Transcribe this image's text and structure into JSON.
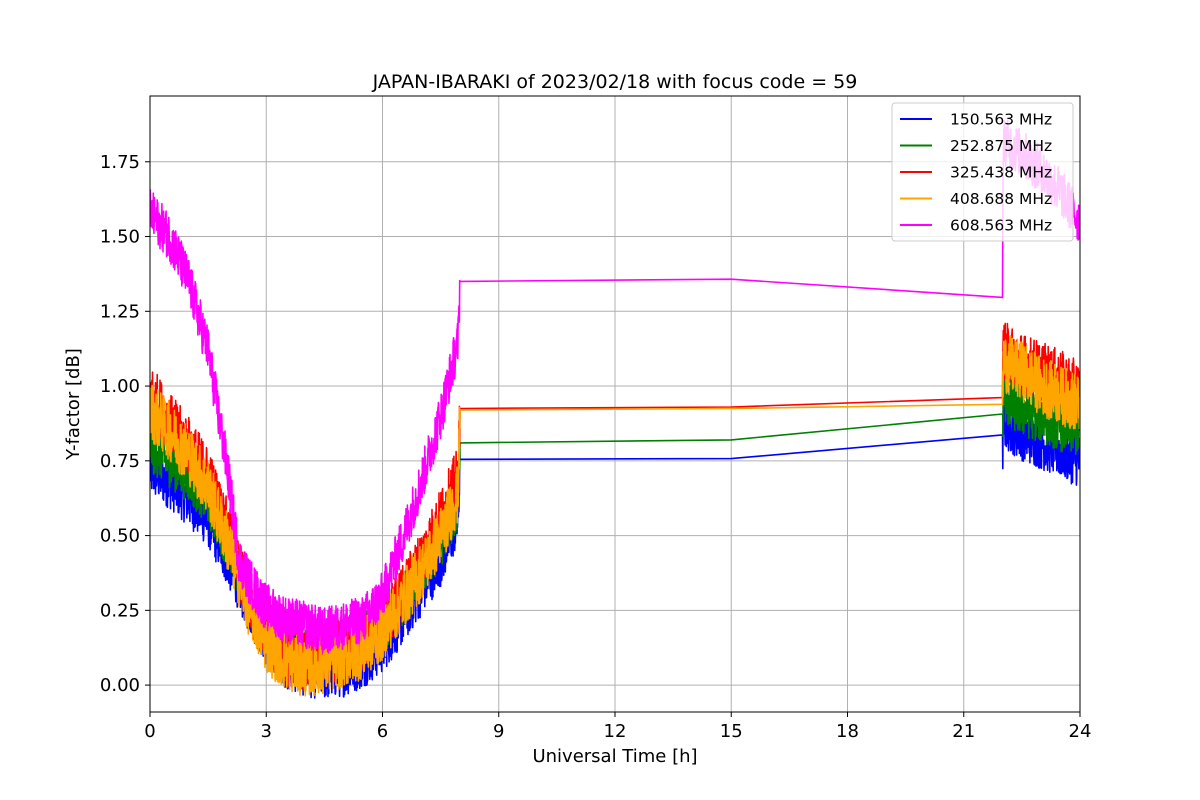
{
  "chart_data": {
    "type": "line",
    "title": "JAPAN-IBARAKI of 2023/02/18 with focus code = 59",
    "xlabel": "Universal Time [h]",
    "ylabel": "Y-factor [dB]",
    "xlim": [
      0,
      24
    ],
    "ylim": [
      -0.09,
      1.97
    ],
    "xticks": [
      0,
      3,
      6,
      9,
      12,
      15,
      18,
      21,
      24
    ],
    "xtick_labels": [
      "0",
      "3",
      "6",
      "9",
      "12",
      "15",
      "18",
      "21",
      "24"
    ],
    "yticks": [
      0.0,
      0.25,
      0.5,
      0.75,
      1.0,
      1.25,
      1.5,
      1.75
    ],
    "ytick_labels": [
      "0.00",
      "0.25",
      "0.50",
      "0.75",
      "1.00",
      "1.25",
      "1.50",
      "1.75"
    ],
    "grid": true,
    "legend_position": "top-right",
    "series": [
      {
        "name": "150.563 MHz",
        "color": "#0000ff",
        "noise": 0.09,
        "points": [
          [
            0,
            0.72
          ],
          [
            0.5,
            0.68
          ],
          [
            1,
            0.62
          ],
          [
            1.5,
            0.55
          ],
          [
            2,
            0.42
          ],
          [
            2.5,
            0.28
          ],
          [
            3,
            0.15
          ],
          [
            3.5,
            0.08
          ],
          [
            4,
            0.05
          ],
          [
            4.5,
            0.04
          ],
          [
            5,
            0.05
          ],
          [
            5.5,
            0.08
          ],
          [
            6,
            0.13
          ],
          [
            6.5,
            0.22
          ],
          [
            7,
            0.32
          ],
          [
            7.5,
            0.42
          ],
          [
            7.95,
            0.55
          ],
          [
            8.0,
            0.755
          ],
          [
            22.0,
            0.76
          ],
          [
            22.02,
            0.88
          ],
          [
            22.5,
            0.84
          ],
          [
            23,
            0.81
          ],
          [
            23.5,
            0.78
          ],
          [
            24,
            0.75
          ]
        ]
      },
      {
        "name": "252.875 MHz",
        "color": "#008000",
        "noise": 0.09,
        "points": [
          [
            0,
            0.8
          ],
          [
            0.5,
            0.75
          ],
          [
            1,
            0.7
          ],
          [
            1.5,
            0.62
          ],
          [
            2,
            0.48
          ],
          [
            2.5,
            0.32
          ],
          [
            3,
            0.18
          ],
          [
            3.5,
            0.12
          ],
          [
            4,
            0.1
          ],
          [
            4.5,
            0.12
          ],
          [
            5,
            0.14
          ],
          [
            5.5,
            0.16
          ],
          [
            6,
            0.2
          ],
          [
            6.5,
            0.28
          ],
          [
            7,
            0.38
          ],
          [
            7.5,
            0.48
          ],
          [
            7.95,
            0.6
          ],
          [
            8.0,
            0.81
          ],
          [
            22.0,
            0.83
          ],
          [
            22.02,
            0.96
          ],
          [
            22.5,
            0.92
          ],
          [
            23,
            0.9
          ],
          [
            23.5,
            0.87
          ],
          [
            24,
            0.85
          ]
        ]
      },
      {
        "name": "325.438 MHz",
        "color": "#ff0000",
        "noise": 0.1,
        "points": [
          [
            0,
            0.98
          ],
          [
            0.5,
            0.88
          ],
          [
            1,
            0.8
          ],
          [
            1.5,
            0.7
          ],
          [
            2,
            0.52
          ],
          [
            2.5,
            0.3
          ],
          [
            3,
            0.16
          ],
          [
            3.5,
            0.1
          ],
          [
            4,
            0.08
          ],
          [
            4.5,
            0.1
          ],
          [
            5,
            0.12
          ],
          [
            5.5,
            0.15
          ],
          [
            6,
            0.2
          ],
          [
            6.5,
            0.3
          ],
          [
            7,
            0.42
          ],
          [
            7.5,
            0.56
          ],
          [
            7.95,
            0.7
          ],
          [
            8.0,
            0.925
          ],
          [
            22.0,
            0.935
          ],
          [
            22.02,
            1.12
          ],
          [
            22.5,
            1.08
          ],
          [
            23,
            1.05
          ],
          [
            23.5,
            1.02
          ],
          [
            24,
            0.98
          ]
        ]
      },
      {
        "name": "408.688 MHz",
        "color": "#ffa500",
        "noise": 0.1,
        "points": [
          [
            0,
            0.92
          ],
          [
            0.5,
            0.85
          ],
          [
            1,
            0.77
          ],
          [
            1.5,
            0.66
          ],
          [
            2,
            0.48
          ],
          [
            2.5,
            0.28
          ],
          [
            3,
            0.14
          ],
          [
            3.5,
            0.08
          ],
          [
            4,
            0.06
          ],
          [
            4.5,
            0.07
          ],
          [
            5,
            0.09
          ],
          [
            5.5,
            0.12
          ],
          [
            6,
            0.18
          ],
          [
            6.5,
            0.28
          ],
          [
            7,
            0.38
          ],
          [
            7.5,
            0.5
          ],
          [
            7.95,
            0.64
          ],
          [
            8.0,
            0.92
          ],
          [
            22.0,
            0.93
          ],
          [
            22.02,
            1.08
          ],
          [
            22.5,
            1.05
          ],
          [
            23,
            1.0
          ],
          [
            23.5,
            0.97
          ],
          [
            24,
            0.94
          ]
        ]
      },
      {
        "name": "608.563 MHz",
        "color": "#ff00ff",
        "noise": 0.08,
        "points": [
          [
            0,
            1.58
          ],
          [
            0.5,
            1.5
          ],
          [
            1,
            1.35
          ],
          [
            1.5,
            1.12
          ],
          [
            2,
            0.72
          ],
          [
            2.3,
            0.42
          ],
          [
            2.6,
            0.34
          ],
          [
            3,
            0.26
          ],
          [
            3.5,
            0.22
          ],
          [
            4,
            0.2
          ],
          [
            4.5,
            0.18
          ],
          [
            5,
            0.2
          ],
          [
            5.5,
            0.22
          ],
          [
            6,
            0.3
          ],
          [
            6.5,
            0.48
          ],
          [
            7,
            0.68
          ],
          [
            7.5,
            0.9
          ],
          [
            7.95,
            1.15
          ],
          [
            8.0,
            1.35
          ],
          [
            22.0,
            1.365
          ],
          [
            22.02,
            1.82
          ],
          [
            22.5,
            1.78
          ],
          [
            23,
            1.72
          ],
          [
            23.5,
            1.65
          ],
          [
            24,
            1.55
          ]
        ]
      }
    ]
  }
}
